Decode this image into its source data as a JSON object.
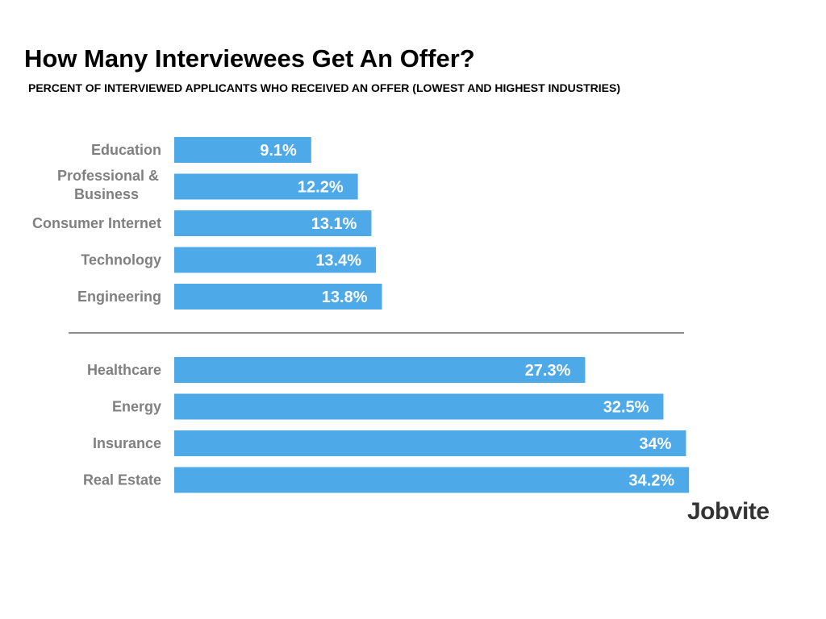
{
  "header": {
    "title": "How Many Interviewees Get An Offer?",
    "subtitle": "PERCENT OF INTERVIEWED APPLICANTS WHO RECEIVED AN OFFER (LOWEST AND HIGHEST INDUSTRIES)"
  },
  "logo": {
    "text": "Jobvite"
  },
  "colors": {
    "bar": "#4ea9e8",
    "category_label": "#808080",
    "separator": "#666666"
  },
  "chart_data": {
    "type": "bar",
    "orientation": "horizontal",
    "title": "How Many Interviewees Get An Offer?",
    "subtitle": "PERCENT OF INTERVIEWED APPLICANTS WHO RECEIVED AN OFFER (LOWEST AND HIGHEST INDUSTRIES)",
    "unit": "%",
    "grid": false,
    "groups": [
      {
        "name": "lowest",
        "categories": [
          [
            "Education"
          ],
          [
            "Professional &",
            "Business"
          ],
          [
            "Consumer Internet"
          ],
          [
            "Technology"
          ],
          [
            "Engineering"
          ]
        ],
        "values": [
          9.1,
          12.2,
          13.1,
          13.4,
          13.8
        ],
        "labels": [
          "9.1%",
          "12.2%",
          "13.1%",
          "13.4%",
          "13.8%"
        ]
      },
      {
        "name": "highest",
        "categories": [
          [
            "Healthcare"
          ],
          [
            "Energy"
          ],
          [
            "Insurance"
          ],
          [
            "Real Estate"
          ]
        ],
        "values": [
          27.3,
          32.5,
          34,
          34.2
        ],
        "labels": [
          "27.3%",
          "32.5%",
          "34%",
          "34.2%"
        ]
      }
    ]
  }
}
